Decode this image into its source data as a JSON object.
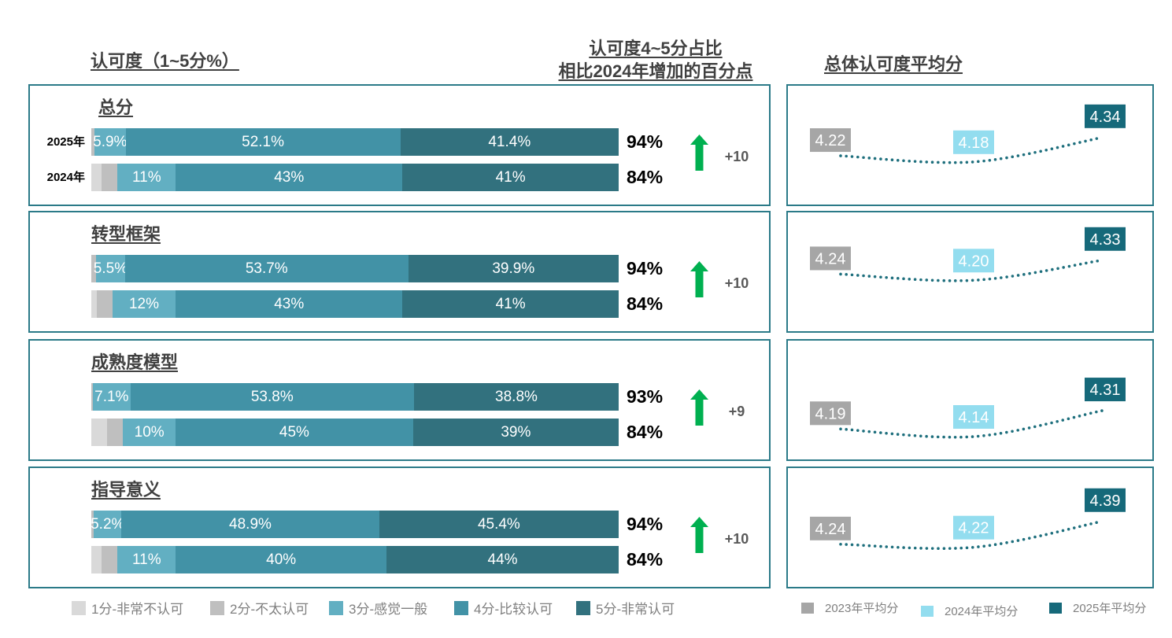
{
  "headers": {
    "distribution_title": "认可度（1~5分%）",
    "top2_title_line1": "认可度4~5分占比",
    "top2_title_line2": "相比2024年增加的百分点",
    "average_title": "总体认可度平均分"
  },
  "colors": {
    "panel_border": "#2b7a88",
    "up_arrow": "#00b050",
    "line": "#1e6f7d",
    "heading": "#404040"
  },
  "chart_data": [
    {
      "type": "bar",
      "orientation": "horizontal",
      "stacked": true,
      "title": "认可度（1~5分%）",
      "unit": "%",
      "legend_position": "bottom",
      "legend": [
        {
          "name": "1分-非常不认可",
          "color": "#d9d9d9"
        },
        {
          "name": "2分-不太认可",
          "color": "#bfbfbf"
        },
        {
          "name": "3分-感觉一般",
          "color": "#62afc2"
        },
        {
          "name": "4分-比较认可",
          "color": "#4292a6"
        },
        {
          "name": "5分-非常认可",
          "color": "#32717e"
        }
      ],
      "groups": [
        {
          "title": "总分",
          "delta": "+10",
          "rows": [
            {
              "year": "2025年",
              "values": [
                0,
                0.6,
                5.9,
                52.1,
                41.4
              ],
              "labels": [
                "",
                "",
                "5.9%",
                "52.1%",
                "41.4%"
              ],
              "top2": "94%"
            },
            {
              "year": "2024年",
              "values": [
                2,
                3,
                11,
                43,
                41
              ],
              "labels": [
                "",
                "",
                "11%",
                "43%",
                "41%"
              ],
              "top2": "84%"
            }
          ]
        },
        {
          "title": "转型框架",
          "delta": "+10",
          "rows": [
            {
              "values": [
                0,
                0.9,
                5.5,
                53.7,
                39.9
              ],
              "labels": [
                "",
                "",
                "5.5%",
                "53.7%",
                "39.9%"
              ],
              "top2": "94%"
            },
            {
              "values": [
                1,
                3,
                12,
                43,
                41
              ],
              "labels": [
                "",
                "",
                "12%",
                "43%",
                "41%"
              ],
              "top2": "84%"
            }
          ]
        },
        {
          "title": "成熟度模型",
          "delta": "+9",
          "rows": [
            {
              "values": [
                0,
                0.3,
                7.1,
                53.8,
                38.8
              ],
              "labels": [
                "",
                "",
                "7.1%",
                "53.8%",
                "38.8%"
              ],
              "top2": "93%"
            },
            {
              "values": [
                3,
                3,
                10,
                45,
                39
              ],
              "labels": [
                "",
                "",
                "10%",
                "45%",
                "39%"
              ],
              "top2": "84%"
            }
          ]
        },
        {
          "title": "指导意义",
          "delta": "+10",
          "rows": [
            {
              "values": [
                0,
                0.5,
                5.2,
                48.9,
                45.4
              ],
              "labels": [
                "",
                "",
                "5.2%",
                "48.9%",
                "45.4%"
              ],
              "top2": "94%"
            },
            {
              "values": [
                2,
                3,
                11,
                40,
                44
              ],
              "labels": [
                "",
                "",
                "11%",
                "40%",
                "44%"
              ],
              "top2": "84%"
            }
          ]
        }
      ]
    },
    {
      "type": "line",
      "title": "总体认可度平均分",
      "x": [
        "2023年平均分",
        "2024年平均分",
        "2025年平均分"
      ],
      "legend_position": "bottom",
      "legend": [
        {
          "name": "2023年平均分",
          "color": "#a6a6a6"
        },
        {
          "name": "2024年平均分",
          "color": "#93ddef"
        },
        {
          "name": "2025年平均分",
          "color": "#16697a"
        }
      ],
      "panels": [
        {
          "name": "总分",
          "values": [
            4.22,
            4.18,
            4.34
          ],
          "labels": [
            "4.22",
            "4.18",
            "4.34"
          ],
          "ylim": [
            3.89,
            4.69
          ]
        },
        {
          "name": "转型框架",
          "values": [
            4.24,
            4.2,
            4.33
          ],
          "labels": [
            "4.24",
            "4.20",
            "4.33"
          ],
          "ylim": [
            3.86,
            4.65
          ]
        },
        {
          "name": "成熟度模型",
          "values": [
            4.19,
            4.14,
            4.31
          ],
          "labels": [
            "4.19",
            "4.14",
            "4.31"
          ],
          "ylim": [
            3.98,
            4.78
          ]
        },
        {
          "name": "指导意义",
          "values": [
            4.24,
            4.22,
            4.39
          ],
          "labels": [
            "4.24",
            "4.22",
            "4.39"
          ],
          "ylim": [
            3.95,
            4.75
          ]
        }
      ]
    }
  ]
}
